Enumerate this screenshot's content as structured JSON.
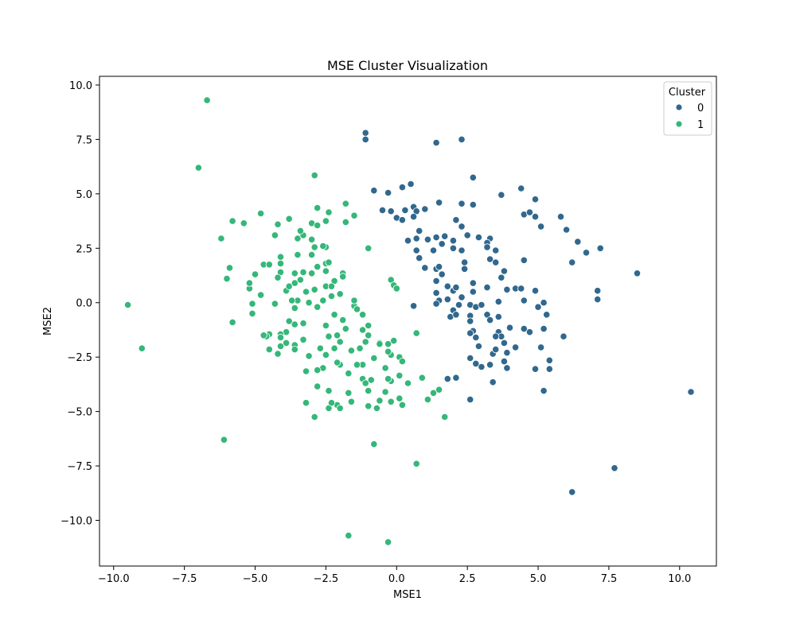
{
  "chart_data": {
    "type": "scatter",
    "title": "MSE Cluster Visualization",
    "xlabel": "MSE1",
    "ylabel": "MSE2",
    "xlim": [
      -10.5,
      11.3
    ],
    "ylim": [
      -12.1,
      10.4
    ],
    "xticks": [
      -10.0,
      -7.5,
      -5.0,
      -2.5,
      0.0,
      2.5,
      5.0,
      7.5,
      10.0
    ],
    "xtick_labels": [
      "−10.0",
      "−7.5",
      "−5.0",
      "−2.5",
      "0.0",
      "2.5",
      "5.0",
      "7.5",
      "10.0"
    ],
    "yticks": [
      -10.0,
      -7.5,
      -5.0,
      -2.5,
      0.0,
      2.5,
      5.0,
      7.5,
      10.0
    ],
    "ytick_labels": [
      "−10.0",
      "−7.5",
      "−5.0",
      "−2.5",
      "0.0",
      "2.5",
      "5.0",
      "7.5",
      "10.0"
    ],
    "grid": false,
    "legend": {
      "title": "Cluster",
      "placement": "top-right",
      "entries": [
        "0",
        "1"
      ]
    },
    "series": [
      {
        "name": "0",
        "color": "#31688e",
        "points": [
          [
            -1.1,
            7.8
          ],
          [
            -1.1,
            7.5
          ],
          [
            1.4,
            7.35
          ],
          [
            2.3,
            7.5
          ],
          [
            2.7,
            5.75
          ],
          [
            3.7,
            4.95
          ],
          [
            4.4,
            5.25
          ],
          [
            -0.8,
            5.15
          ],
          [
            -0.3,
            5.05
          ],
          [
            0.2,
            5.3
          ],
          [
            0.5,
            5.45
          ],
          [
            1.5,
            4.6
          ],
          [
            2.3,
            4.55
          ],
          [
            2.7,
            4.5
          ],
          [
            -0.5,
            4.25
          ],
          [
            -0.2,
            4.2
          ],
          [
            0.0,
            3.9
          ],
          [
            0.3,
            4.25
          ],
          [
            0.6,
            4.4
          ],
          [
            0.7,
            4.2
          ],
          [
            1.0,
            4.3
          ],
          [
            0.6,
            3.95
          ],
          [
            0.2,
            3.8
          ],
          [
            4.5,
            4.05
          ],
          [
            4.7,
            4.15
          ],
          [
            4.9,
            4.75
          ],
          [
            4.9,
            3.95
          ],
          [
            5.1,
            3.5
          ],
          [
            5.8,
            3.95
          ],
          [
            6.0,
            3.35
          ],
          [
            6.4,
            2.8
          ],
          [
            6.7,
            2.3
          ],
          [
            7.2,
            2.5
          ],
          [
            6.2,
            1.85
          ],
          [
            2.1,
            3.8
          ],
          [
            2.3,
            3.5
          ],
          [
            2.5,
            3.1
          ],
          [
            2.0,
            2.85
          ],
          [
            1.7,
            3.05
          ],
          [
            0.8,
            3.3
          ],
          [
            0.4,
            2.85
          ],
          [
            0.7,
            2.95
          ],
          [
            1.1,
            2.9
          ],
          [
            1.4,
            3.0
          ],
          [
            1.6,
            2.7
          ],
          [
            1.3,
            2.4
          ],
          [
            0.7,
            2.4
          ],
          [
            0.8,
            2.05
          ],
          [
            1.0,
            1.6
          ],
          [
            1.4,
            1.55
          ],
          [
            1.5,
            1.65
          ],
          [
            2.0,
            2.5
          ],
          [
            2.3,
            2.4
          ],
          [
            2.4,
            1.85
          ],
          [
            2.4,
            1.55
          ],
          [
            2.9,
            3.0
          ],
          [
            3.3,
            2.95
          ],
          [
            3.2,
            2.75
          ],
          [
            3.2,
            2.55
          ],
          [
            3.5,
            2.4
          ],
          [
            3.3,
            2.0
          ],
          [
            3.5,
            1.85
          ],
          [
            3.8,
            1.45
          ],
          [
            3.7,
            1.15
          ],
          [
            4.5,
            1.95
          ],
          [
            1.4,
            1.0
          ],
          [
            1.6,
            1.3
          ],
          [
            1.8,
            0.75
          ],
          [
            2.0,
            0.55
          ],
          [
            2.1,
            0.7
          ],
          [
            2.3,
            0.25
          ],
          [
            2.7,
            0.9
          ],
          [
            2.7,
            0.5
          ],
          [
            3.2,
            0.7
          ],
          [
            3.9,
            0.6
          ],
          [
            4.2,
            0.65
          ],
          [
            4.4,
            0.65
          ],
          [
            4.9,
            0.55
          ],
          [
            1.4,
            0.45
          ],
          [
            1.5,
            0.1
          ],
          [
            1.8,
            0.15
          ],
          [
            2.2,
            -0.1
          ],
          [
            2.0,
            -0.35
          ],
          [
            2.6,
            -0.1
          ],
          [
            2.8,
            -0.2
          ],
          [
            3.0,
            -0.1
          ],
          [
            3.6,
            0.05
          ],
          [
            4.5,
            0.1
          ],
          [
            5.2,
            0.0
          ],
          [
            5.0,
            -0.2
          ],
          [
            5.3,
            -0.55
          ],
          [
            0.6,
            -0.15
          ],
          [
            1.4,
            -0.05
          ],
          [
            1.9,
            -0.65
          ],
          [
            2.1,
            -0.55
          ],
          [
            2.6,
            -0.6
          ],
          [
            2.6,
            -0.85
          ],
          [
            3.2,
            -0.55
          ],
          [
            3.6,
            -0.65
          ],
          [
            2.7,
            -1.3
          ],
          [
            2.8,
            -1.6
          ],
          [
            2.6,
            -1.4
          ],
          [
            3.3,
            -0.8
          ],
          [
            3.6,
            -1.35
          ],
          [
            3.7,
            -1.55
          ],
          [
            3.5,
            -1.55
          ],
          [
            3.8,
            -1.85
          ],
          [
            4.0,
            -1.15
          ],
          [
            4.5,
            -1.2
          ],
          [
            5.2,
            -1.2
          ],
          [
            5.9,
            -1.55
          ],
          [
            4.7,
            -1.35
          ],
          [
            2.9,
            -2.0
          ],
          [
            3.4,
            -2.35
          ],
          [
            3.5,
            -2.15
          ],
          [
            3.9,
            -2.3
          ],
          [
            4.2,
            -2.05
          ],
          [
            2.6,
            -2.55
          ],
          [
            2.8,
            -2.8
          ],
          [
            3.0,
            -2.95
          ],
          [
            3.3,
            -2.85
          ],
          [
            3.8,
            -2.7
          ],
          [
            3.9,
            -3.0
          ],
          [
            4.9,
            -3.05
          ],
          [
            5.1,
            -2.05
          ],
          [
            5.4,
            -2.65
          ],
          [
            5.4,
            -3.05
          ],
          [
            3.4,
            -3.65
          ],
          [
            2.6,
            -4.45
          ],
          [
            1.8,
            -3.5
          ],
          [
            2.1,
            -3.45
          ],
          [
            5.2,
            -4.05
          ],
          [
            7.1,
            0.55
          ],
          [
            7.1,
            0.15
          ],
          [
            8.5,
            1.35
          ],
          [
            10.4,
            -4.1
          ],
          [
            6.2,
            -8.7
          ],
          [
            7.7,
            -7.6
          ]
        ]
      },
      {
        "name": "1",
        "color": "#35b779",
        "points": [
          [
            -6.7,
            9.3
          ],
          [
            -7.0,
            6.2
          ],
          [
            -9.5,
            -0.1
          ],
          [
            -9.0,
            -2.1
          ],
          [
            -6.1,
            -6.3
          ],
          [
            -1.7,
            -10.7
          ],
          [
            -0.3,
            -11.0
          ],
          [
            -0.8,
            -6.5
          ],
          [
            0.7,
            -7.4
          ],
          [
            1.7,
            -5.25
          ],
          [
            1.5,
            -4.0
          ],
          [
            1.3,
            -4.15
          ],
          [
            1.1,
            -4.45
          ],
          [
            0.9,
            -3.45
          ],
          [
            0.4,
            -3.7
          ],
          [
            0.2,
            -4.7
          ],
          [
            0.1,
            -4.4
          ],
          [
            -0.2,
            -4.55
          ],
          [
            -0.4,
            -4.1
          ],
          [
            -0.6,
            -4.5
          ],
          [
            -0.7,
            -4.85
          ],
          [
            -1.0,
            -4.75
          ],
          [
            -1.0,
            -4.05
          ],
          [
            -0.9,
            -3.55
          ],
          [
            -1.2,
            -3.5
          ],
          [
            -1.1,
            -3.7
          ],
          [
            -0.2,
            -3.6
          ],
          [
            -0.3,
            -3.5
          ],
          [
            0.1,
            -3.35
          ],
          [
            -0.4,
            -3.0
          ],
          [
            -0.8,
            -2.55
          ],
          [
            -1.2,
            -2.85
          ],
          [
            -1.4,
            -2.85
          ],
          [
            -1.7,
            -3.25
          ],
          [
            -1.6,
            -2.2
          ],
          [
            -1.3,
            -2.1
          ],
          [
            -2.0,
            -2.85
          ],
          [
            -2.1,
            -2.75
          ],
          [
            -2.5,
            -2.4
          ],
          [
            -2.7,
            -2.1
          ],
          [
            -2.6,
            -3.0
          ],
          [
            -2.8,
            -3.1
          ],
          [
            -3.2,
            -3.15
          ],
          [
            -3.1,
            -2.45
          ],
          [
            -2.8,
            -3.85
          ],
          [
            -2.4,
            -4.05
          ],
          [
            -1.7,
            -4.15
          ],
          [
            -1.6,
            -4.55
          ],
          [
            -2.1,
            -4.7
          ],
          [
            -2.0,
            -4.85
          ],
          [
            -2.4,
            -4.85
          ],
          [
            -2.3,
            -4.6
          ],
          [
            -3.2,
            -4.6
          ],
          [
            -2.9,
            -5.25
          ],
          [
            -2.0,
            -1.8
          ],
          [
            -2.2,
            -2.1
          ],
          [
            -2.1,
            -1.5
          ],
          [
            -2.4,
            -1.55
          ],
          [
            -2.5,
            -1.05
          ],
          [
            -1.9,
            -0.8
          ],
          [
            -1.8,
            -1.2
          ],
          [
            -1.2,
            -1.25
          ],
          [
            -1.0,
            -1.05
          ],
          [
            -1.0,
            -1.5
          ],
          [
            -1.1,
            -1.8
          ],
          [
            -0.6,
            -1.85
          ],
          [
            -0.6,
            -1.9
          ],
          [
            -0.3,
            -1.9
          ],
          [
            -0.1,
            -1.75
          ],
          [
            -0.2,
            -2.4
          ],
          [
            0.1,
            -2.5
          ],
          [
            0.2,
            -2.7
          ],
          [
            0.7,
            -1.4
          ],
          [
            -0.3,
            -2.25
          ],
          [
            -1.5,
            -0.15
          ],
          [
            -1.4,
            -0.3
          ],
          [
            -1.2,
            -0.55
          ],
          [
            -1.5,
            0.1
          ],
          [
            -2.2,
            -0.55
          ],
          [
            -2.0,
            0.4
          ],
          [
            -2.3,
            0.3
          ],
          [
            -2.6,
            0.1
          ],
          [
            -2.5,
            0.75
          ],
          [
            -2.8,
            -0.2
          ],
          [
            -2.9,
            0.6
          ],
          [
            -3.1,
            0.0
          ],
          [
            -3.2,
            0.5
          ],
          [
            -3.3,
            -0.95
          ],
          [
            -3.6,
            -1.0
          ],
          [
            -3.8,
            -0.85
          ],
          [
            -3.6,
            -0.25
          ],
          [
            -3.5,
            0.1
          ],
          [
            -3.7,
            0.1
          ],
          [
            -3.9,
            0.55
          ],
          [
            -3.9,
            -1.35
          ],
          [
            -4.1,
            -1.45
          ],
          [
            -4.1,
            -1.6
          ],
          [
            -3.9,
            -1.85
          ],
          [
            -3.6,
            -1.95
          ],
          [
            -3.6,
            -2.15
          ],
          [
            -3.3,
            -1.7
          ],
          [
            -4.1,
            -2.0
          ],
          [
            -4.2,
            -2.35
          ],
          [
            -4.5,
            -2.15
          ],
          [
            -4.5,
            -1.45
          ],
          [
            -4.6,
            -1.55
          ],
          [
            -4.7,
            -1.5
          ],
          [
            -4.3,
            -0.05
          ],
          [
            -4.8,
            0.35
          ],
          [
            -5.2,
            0.65
          ],
          [
            -5.2,
            0.9
          ],
          [
            -5.1,
            -0.05
          ],
          [
            -5.1,
            -0.5
          ],
          [
            -5.8,
            -0.9
          ],
          [
            -6.0,
            1.1
          ],
          [
            -5.9,
            1.6
          ],
          [
            -5.0,
            1.3
          ],
          [
            -4.7,
            1.75
          ],
          [
            -4.5,
            1.75
          ],
          [
            -4.1,
            1.4
          ],
          [
            -4.2,
            1.15
          ],
          [
            -3.8,
            0.75
          ],
          [
            -3.6,
            0.9
          ],
          [
            -3.4,
            1.05
          ],
          [
            -3.3,
            1.4
          ],
          [
            -3.0,
            1.35
          ],
          [
            -3.6,
            1.35
          ],
          [
            -4.1,
            2.1
          ],
          [
            -4.1,
            1.8
          ],
          [
            -3.5,
            2.2
          ],
          [
            -3.0,
            2.2
          ],
          [
            -2.8,
            1.65
          ],
          [
            -2.5,
            1.8
          ],
          [
            -2.4,
            1.85
          ],
          [
            -2.5,
            1.45
          ],
          [
            -2.2,
            1.0
          ],
          [
            -1.9,
            1.35
          ],
          [
            -1.9,
            1.2
          ],
          [
            -2.3,
            0.75
          ],
          [
            -2.5,
            2.55
          ],
          [
            -2.6,
            2.6
          ],
          [
            -2.9,
            2.55
          ],
          [
            -3.0,
            2.9
          ],
          [
            -3.3,
            3.1
          ],
          [
            -3.5,
            2.95
          ],
          [
            -3.0,
            3.65
          ],
          [
            -2.8,
            3.55
          ],
          [
            -2.5,
            3.75
          ],
          [
            -2.4,
            4.15
          ],
          [
            -2.8,
            4.35
          ],
          [
            -3.4,
            3.3
          ],
          [
            -3.8,
            3.85
          ],
          [
            -4.2,
            3.6
          ],
          [
            -4.3,
            3.1
          ],
          [
            -4.8,
            4.1
          ],
          [
            -5.4,
            3.65
          ],
          [
            -5.8,
            3.75
          ],
          [
            -6.2,
            2.95
          ],
          [
            -2.9,
            5.85
          ],
          [
            -1.8,
            4.55
          ],
          [
            -1.8,
            3.7
          ],
          [
            -1.5,
            4.0
          ],
          [
            -1.0,
            2.5
          ],
          [
            -0.2,
            1.05
          ],
          [
            -0.1,
            0.8
          ],
          [
            0.0,
            0.65
          ]
        ]
      }
    ]
  }
}
